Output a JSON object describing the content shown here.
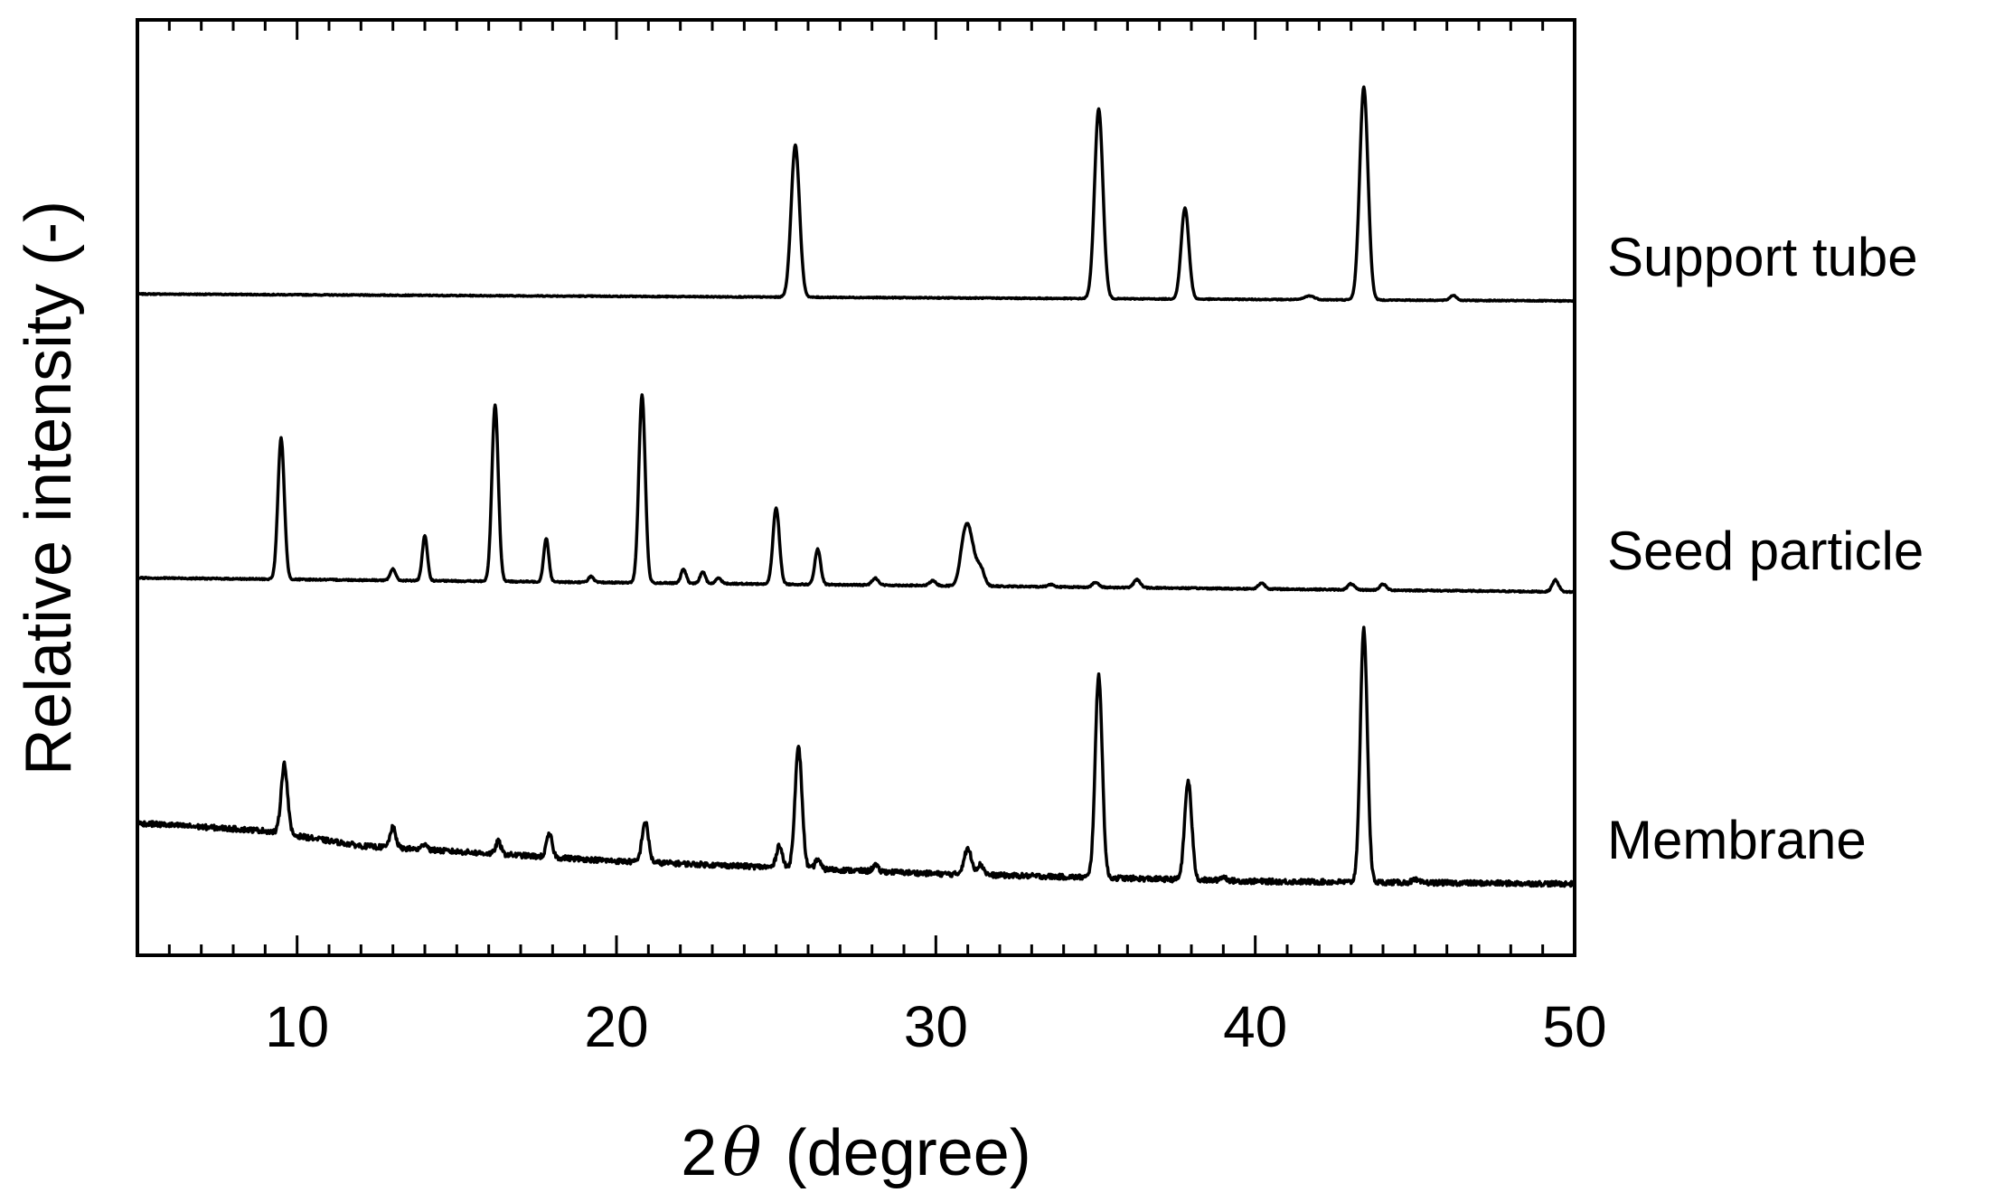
{
  "chart_data": {
    "type": "line",
    "title": "",
    "xlabel_prefix": "2",
    "xlabel_symbol": "θ",
    "xlabel_suffix": " (degree)",
    "ylabel": "Relative intensity (-)",
    "xlim": [
      5,
      50
    ],
    "xticks": [
      10,
      20,
      30,
      40,
      50
    ],
    "xtick_labels": [
      "10",
      "20",
      "30",
      "40",
      "50"
    ],
    "x_minor_step": 1,
    "grid": false,
    "line_color": "#000000",
    "series": [
      {
        "name": "Support tube",
        "baseline": [
          [
            5,
            0.055
          ],
          [
            50,
            0.0
          ]
        ],
        "noise": 0.004,
        "peaks": [
          {
            "x": 25.6,
            "h": 1.2,
            "w": 0.13
          },
          {
            "x": 35.1,
            "h": 1.5,
            "w": 0.13
          },
          {
            "x": 37.8,
            "h": 0.72,
            "w": 0.12
          },
          {
            "x": 41.7,
            "h": 0.03,
            "w": 0.15
          },
          {
            "x": 43.4,
            "h": 1.68,
            "w": 0.13
          },
          {
            "x": 46.2,
            "h": 0.04,
            "w": 0.1
          }
        ]
      },
      {
        "name": "Seed particle",
        "baseline": [
          [
            5,
            0.12
          ],
          [
            50,
            0.0
          ]
        ],
        "noise": 0.006,
        "peaks": [
          {
            "x": 9.5,
            "h": 1.2,
            "w": 0.1
          },
          {
            "x": 13.0,
            "h": 0.1,
            "w": 0.08
          },
          {
            "x": 14.0,
            "h": 0.38,
            "w": 0.08
          },
          {
            "x": 16.2,
            "h": 1.5,
            "w": 0.1
          },
          {
            "x": 17.8,
            "h": 0.37,
            "w": 0.08
          },
          {
            "x": 19.2,
            "h": 0.05,
            "w": 0.08
          },
          {
            "x": 20.8,
            "h": 1.6,
            "w": 0.1
          },
          {
            "x": 22.1,
            "h": 0.12,
            "w": 0.08
          },
          {
            "x": 22.7,
            "h": 0.1,
            "w": 0.08
          },
          {
            "x": 23.2,
            "h": 0.05,
            "w": 0.08
          },
          {
            "x": 25.0,
            "h": 0.65,
            "w": 0.1
          },
          {
            "x": 26.3,
            "h": 0.3,
            "w": 0.09
          },
          {
            "x": 28.1,
            "h": 0.06,
            "w": 0.1
          },
          {
            "x": 29.9,
            "h": 0.04,
            "w": 0.1
          },
          {
            "x": 30.9,
            "h": 0.38,
            "w": 0.14
          },
          {
            "x": 31.1,
            "h": 0.3,
            "w": 0.14
          },
          {
            "x": 31.4,
            "h": 0.15,
            "w": 0.12
          },
          {
            "x": 33.6,
            "h": 0.02,
            "w": 0.1
          },
          {
            "x": 35.0,
            "h": 0.04,
            "w": 0.1
          },
          {
            "x": 36.3,
            "h": 0.07,
            "w": 0.1
          },
          {
            "x": 40.2,
            "h": 0.05,
            "w": 0.1
          },
          {
            "x": 43.0,
            "h": 0.05,
            "w": 0.1
          },
          {
            "x": 44.0,
            "h": 0.05,
            "w": 0.1
          },
          {
            "x": 49.4,
            "h": 0.1,
            "w": 0.1
          }
        ]
      },
      {
        "name": "Membrane",
        "baseline": [
          [
            5,
            0.48
          ],
          [
            9,
            0.42
          ],
          [
            12,
            0.3
          ],
          [
            20,
            0.18
          ],
          [
            30,
            0.08
          ],
          [
            40,
            0.02
          ],
          [
            50,
            0.0
          ]
        ],
        "noise": 0.02,
        "peaks": [
          {
            "x": 9.6,
            "h": 0.55,
            "w": 0.1
          },
          {
            "x": 13.0,
            "h": 0.16,
            "w": 0.09
          },
          {
            "x": 14.0,
            "h": 0.05,
            "w": 0.08
          },
          {
            "x": 16.3,
            "h": 0.1,
            "w": 0.08
          },
          {
            "x": 17.9,
            "h": 0.18,
            "w": 0.09
          },
          {
            "x": 20.9,
            "h": 0.32,
            "w": 0.1
          },
          {
            "x": 25.1,
            "h": 0.18,
            "w": 0.09
          },
          {
            "x": 25.7,
            "h": 0.95,
            "w": 0.11
          },
          {
            "x": 26.3,
            "h": 0.08,
            "w": 0.08
          },
          {
            "x": 28.1,
            "h": 0.05,
            "w": 0.08
          },
          {
            "x": 31.0,
            "h": 0.2,
            "w": 0.12
          },
          {
            "x": 31.4,
            "h": 0.08,
            "w": 0.1
          },
          {
            "x": 35.1,
            "h": 1.6,
            "w": 0.11
          },
          {
            "x": 37.9,
            "h": 0.78,
            "w": 0.11
          },
          {
            "x": 39.0,
            "h": 0.03,
            "w": 0.1
          },
          {
            "x": 43.4,
            "h": 2.0,
            "w": 0.11
          },
          {
            "x": 45.0,
            "h": 0.02,
            "w": 0.1
          }
        ]
      }
    ]
  }
}
